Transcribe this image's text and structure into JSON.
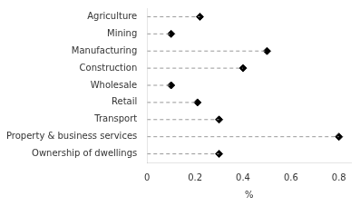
{
  "chart_data": {
    "type": "lollipop",
    "orientation": "horizontal",
    "categories": [
      "Agriculture",
      "Mining",
      "Manufacturing",
      "Construction",
      "Wholesale",
      "Retail",
      "Transport",
      "Property & business services",
      "Ownership of dwellings"
    ],
    "values": [
      0.22,
      0.1,
      0.5,
      0.4,
      0.1,
      0.21,
      0.3,
      0.8,
      0.3
    ],
    "xlim": [
      0,
      0.85
    ],
    "xticks": [
      0,
      0.2,
      0.4,
      0.6,
      0.8
    ],
    "xlabel": "%",
    "color": "#000000",
    "marker": "diamond",
    "line_style": "dashed",
    "grid": false
  }
}
